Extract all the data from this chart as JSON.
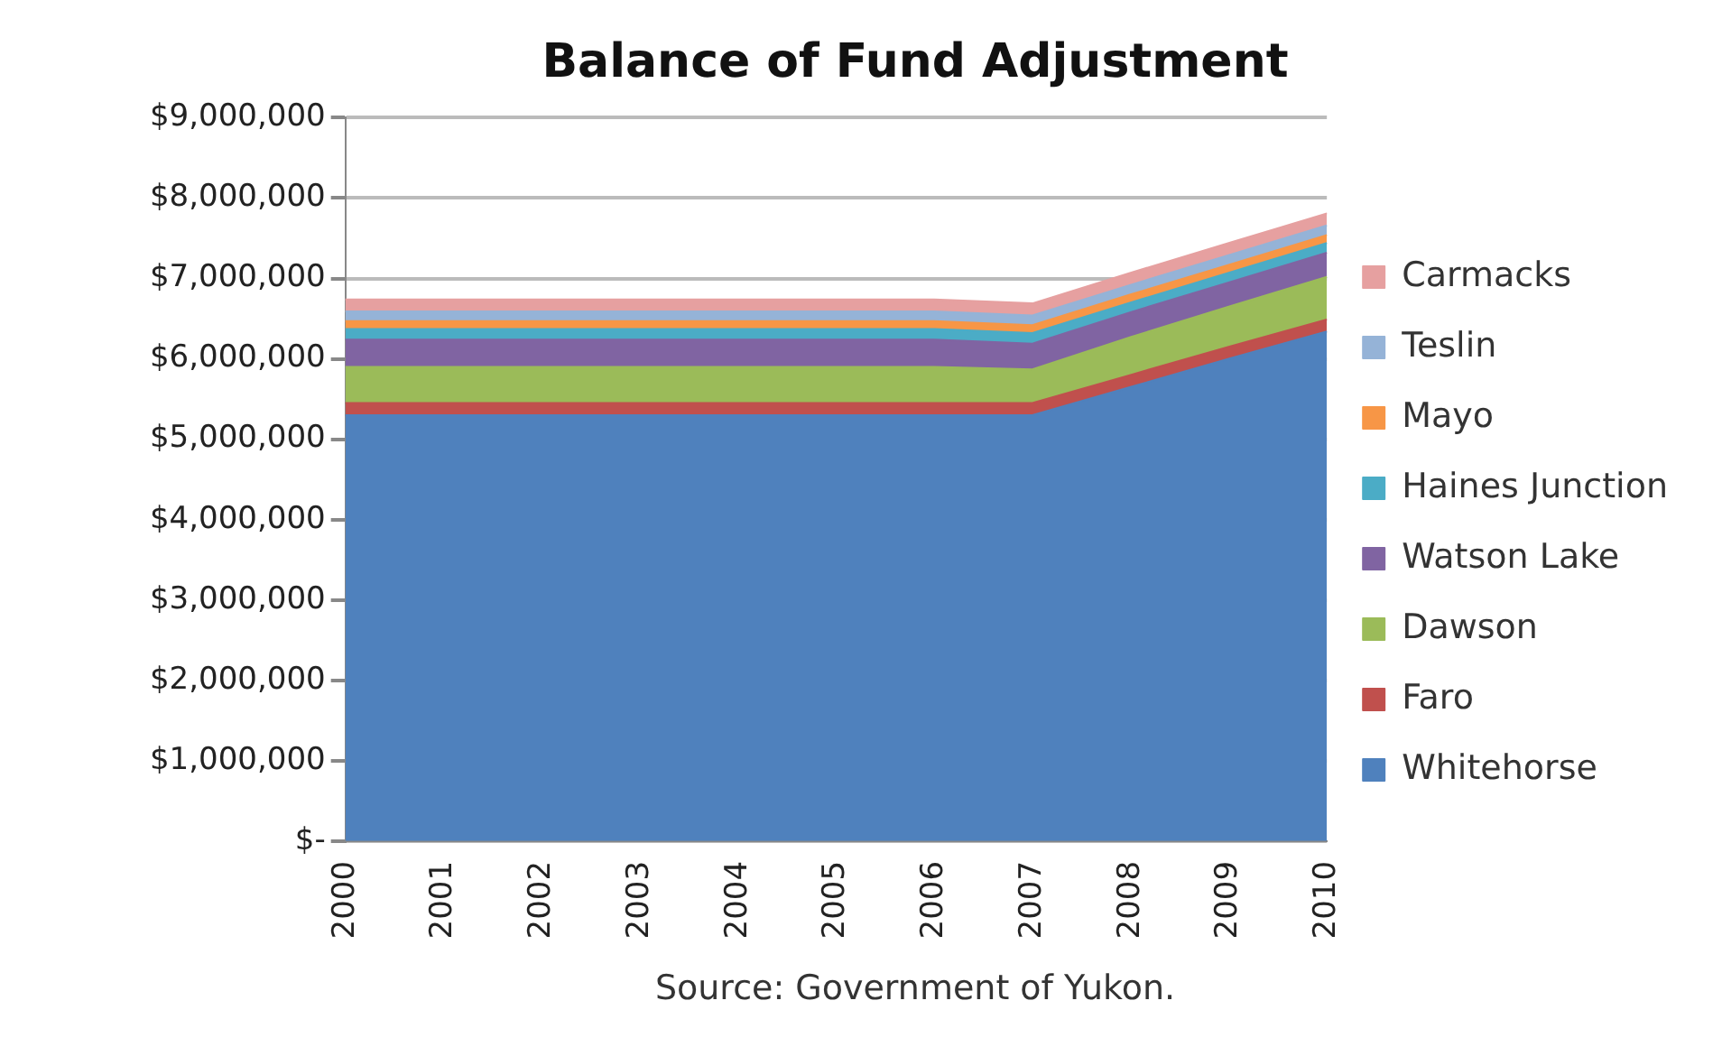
{
  "chart_data": {
    "type": "area",
    "stacked": true,
    "title": "Balance of Fund Adjustment",
    "annotations": [
      "Source: Government of Yukon."
    ],
    "categories": [
      "2000",
      "2001",
      "2002",
      "2003",
      "2004",
      "2005",
      "2006",
      "2007",
      "2008",
      "2009",
      "2010"
    ],
    "series": [
      {
        "name": "Whitehorse",
        "color": "#4f81bd",
        "values": [
          5300000,
          5300000,
          5300000,
          5300000,
          5300000,
          5300000,
          5300000,
          5300000,
          5650000,
          6000000,
          6340000
        ]
      },
      {
        "name": "Faro",
        "color": "#c0504d",
        "values": [
          150000,
          150000,
          150000,
          150000,
          150000,
          150000,
          150000,
          150000,
          150000,
          150000,
          150000
        ]
      },
      {
        "name": "Dawson",
        "color": "#9bbb59",
        "values": [
          450000,
          450000,
          450000,
          450000,
          450000,
          450000,
          450000,
          420000,
          470000,
          500000,
          530000
        ]
      },
      {
        "name": "Watson Lake",
        "color": "#8064a2",
        "values": [
          340000,
          340000,
          340000,
          340000,
          340000,
          340000,
          340000,
          320000,
          310000,
          300000,
          300000
        ]
      },
      {
        "name": "Haines Junction",
        "color": "#4bacc6",
        "values": [
          130000,
          130000,
          130000,
          130000,
          130000,
          130000,
          130000,
          130000,
          120000,
          120000,
          120000
        ]
      },
      {
        "name": "Mayo",
        "color": "#f79646",
        "values": [
          100000,
          100000,
          100000,
          100000,
          100000,
          100000,
          100000,
          100000,
          100000,
          100000,
          100000
        ]
      },
      {
        "name": "Teslin",
        "color": "#95b3d7",
        "values": [
          120000,
          120000,
          120000,
          120000,
          120000,
          120000,
          120000,
          120000,
          120000,
          120000,
          120000
        ]
      },
      {
        "name": "Carmacks",
        "color": "#e6a0a0",
        "values": [
          150000,
          150000,
          150000,
          150000,
          150000,
          150000,
          150000,
          150000,
          150000,
          150000,
          150000
        ]
      }
    ],
    "ylim": [
      0,
      9000000
    ],
    "yticks": [
      {
        "value": 0,
        "label": "$-"
      },
      {
        "value": 1000000,
        "label": "$1,000,000"
      },
      {
        "value": 2000000,
        "label": "$2,000,000"
      },
      {
        "value": 3000000,
        "label": "$3,000,000"
      },
      {
        "value": 4000000,
        "label": "$4,000,000"
      },
      {
        "value": 5000000,
        "label": "$5,000,000"
      },
      {
        "value": 6000000,
        "label": "$6,000,000"
      },
      {
        "value": 7000000,
        "label": "$7,000,000"
      },
      {
        "value": 8000000,
        "label": "$8,000,000"
      },
      {
        "value": 9000000,
        "label": "$9,000,000"
      }
    ],
    "grid": "y",
    "legend": "right"
  }
}
